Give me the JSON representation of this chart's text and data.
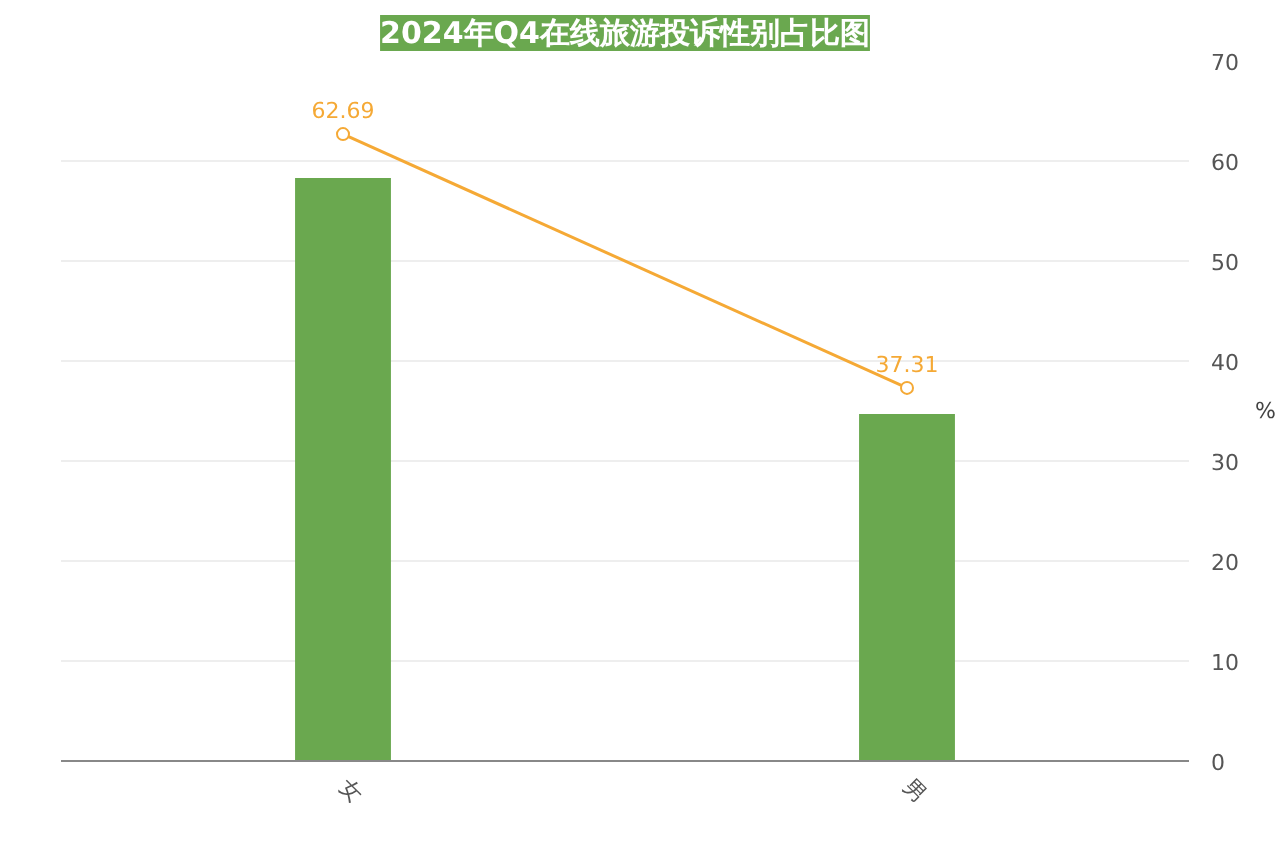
{
  "chart_data": {
    "type": "bar",
    "title": "2024年Q4在线旅游投诉性别占比图",
    "ylabel": "%",
    "categories": [
      "女",
      "男"
    ],
    "series": [
      {
        "color": "#6aa84f",
        "values": [
          58.3,
          34.7
        ]
      },
      {
        "type": "line",
        "color": "#f5a935",
        "values": [
          62.69,
          37.31
        ],
        "value_labels": [
          "62.69",
          "37.31"
        ],
        "marker": "circle"
      }
    ],
    "ylim": [
      0,
      70
    ],
    "yticks": [
      0,
      10,
      20,
      30,
      40,
      50,
      60,
      70
    ],
    "grid": "y"
  }
}
